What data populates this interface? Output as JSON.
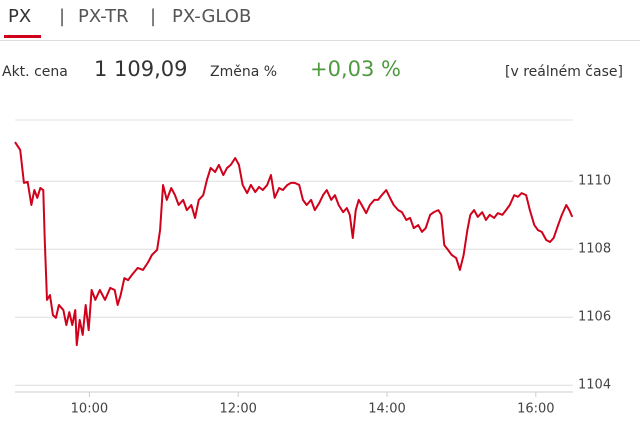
{
  "tabs": [
    "PX",
    "PX-TR",
    "PX-GLOB"
  ],
  "info": {
    "price_label": "Akt. cena",
    "price": "1 109,09",
    "change_label": "Změna %",
    "change": "+0,03 %",
    "realtime": "[v reálném čase]"
  },
  "chart_data": {
    "type": "line",
    "color": "#d0021b",
    "grid": true,
    "xlim": [
      9,
      16.5
    ],
    "ylim": [
      1103.8,
      1111.8
    ],
    "xticks": [
      {
        "value": 10,
        "label": "10:00"
      },
      {
        "value": 12,
        "label": "12:00"
      },
      {
        "value": 14,
        "label": "14:00"
      },
      {
        "value": 16,
        "label": "16:00"
      }
    ],
    "yticks": [
      1104,
      1106,
      1108,
      1110
    ],
    "x": [
      9.0,
      9.07,
      9.12,
      9.17,
      9.22,
      9.26,
      9.3,
      9.34,
      9.38,
      9.4,
      9.43,
      9.47,
      9.51,
      9.55,
      9.59,
      9.65,
      9.69,
      9.73,
      9.77,
      9.81,
      9.83,
      9.87,
      9.91,
      9.95,
      9.99,
      10.03,
      10.08,
      10.14,
      10.21,
      10.28,
      10.34,
      10.38,
      10.42,
      10.47,
      10.52,
      10.57,
      10.65,
      10.72,
      10.79,
      10.84,
      10.91,
      10.95,
      10.99,
      11.04,
      11.1,
      11.15,
      11.2,
      11.26,
      11.31,
      11.37,
      11.42,
      11.47,
      11.53,
      11.58,
      11.63,
      11.69,
      11.74,
      11.8,
      11.85,
      11.9,
      11.96,
      12.01,
      12.06,
      12.12,
      12.17,
      12.23,
      12.28,
      12.33,
      12.39,
      12.44,
      12.49,
      12.55,
      12.6,
      12.66,
      12.71,
      12.76,
      12.82,
      12.87,
      12.92,
      12.98,
      13.03,
      13.09,
      13.14,
      13.19,
      13.25,
      13.3,
      13.35,
      13.41,
      13.46,
      13.5,
      13.54,
      13.58,
      13.62,
      13.66,
      13.72,
      13.77,
      13.83,
      13.88,
      13.93,
      13.99,
      14.04,
      14.09,
      14.15,
      14.2,
      14.26,
      14.31,
      14.36,
      14.42,
      14.47,
      14.52,
      14.58,
      14.63,
      14.69,
      14.73,
      14.77,
      14.82,
      14.87,
      14.93,
      14.98,
      15.03,
      15.08,
      15.12,
      15.17,
      15.22,
      15.28,
      15.33,
      15.38,
      15.44,
      15.49,
      15.55,
      15.6,
      15.65,
      15.71,
      15.76,
      15.81,
      15.87,
      15.92,
      15.98,
      16.03,
      16.08,
      16.14,
      16.19,
      16.24,
      16.3,
      16.35,
      16.41,
      16.45,
      16.49
    ],
    "values": [
      1111.15,
      1110.92,
      1109.95,
      1109.98,
      1109.3,
      1109.74,
      1109.51,
      1109.8,
      1109.74,
      1108.27,
      1106.51,
      1106.65,
      1106.06,
      1105.98,
      1106.36,
      1106.21,
      1105.77,
      1106.15,
      1105.77,
      1106.21,
      1105.18,
      1105.92,
      1105.48,
      1106.36,
      1105.62,
      1106.8,
      1106.51,
      1106.8,
      1106.51,
      1106.86,
      1106.8,
      1106.36,
      1106.65,
      1107.15,
      1107.09,
      1107.24,
      1107.45,
      1107.39,
      1107.62,
      1107.83,
      1107.98,
      1108.56,
      1109.89,
      1109.45,
      1109.8,
      1109.59,
      1109.3,
      1109.45,
      1109.15,
      1109.3,
      1108.92,
      1109.45,
      1109.59,
      1110.04,
      1110.39,
      1110.27,
      1110.48,
      1110.18,
      1110.39,
      1110.48,
      1110.68,
      1110.48,
      1109.89,
      1109.65,
      1109.89,
      1109.68,
      1109.83,
      1109.74,
      1109.89,
      1110.18,
      1109.51,
      1109.8,
      1109.74,
      1109.89,
      1109.95,
      1109.95,
      1109.89,
      1109.45,
      1109.3,
      1109.45,
      1109.15,
      1109.36,
      1109.59,
      1109.74,
      1109.45,
      1109.59,
      1109.3,
      1109.09,
      1109.21,
      1109.01,
      1108.33,
      1109.15,
      1109.45,
      1109.3,
      1109.06,
      1109.3,
      1109.45,
      1109.45,
      1109.59,
      1109.74,
      1109.51,
      1109.3,
      1109.15,
      1109.09,
      1108.86,
      1108.92,
      1108.62,
      1108.71,
      1108.51,
      1108.62,
      1109.01,
      1109.09,
      1109.15,
      1109.01,
      1108.12,
      1107.98,
      1107.83,
      1107.74,
      1107.39,
      1107.83,
      1108.56,
      1109.01,
      1109.15,
      1108.95,
      1109.09,
      1108.86,
      1109.01,
      1108.92,
      1109.06,
      1109.01,
      1109.15,
      1109.3,
      1109.59,
      1109.54,
      1109.65,
      1109.59,
      1109.15,
      1108.71,
      1108.56,
      1108.51,
      1108.27,
      1108.21,
      1108.33,
      1108.71,
      1109.01,
      1109.3,
      1109.15,
      1108.95
    ]
  }
}
